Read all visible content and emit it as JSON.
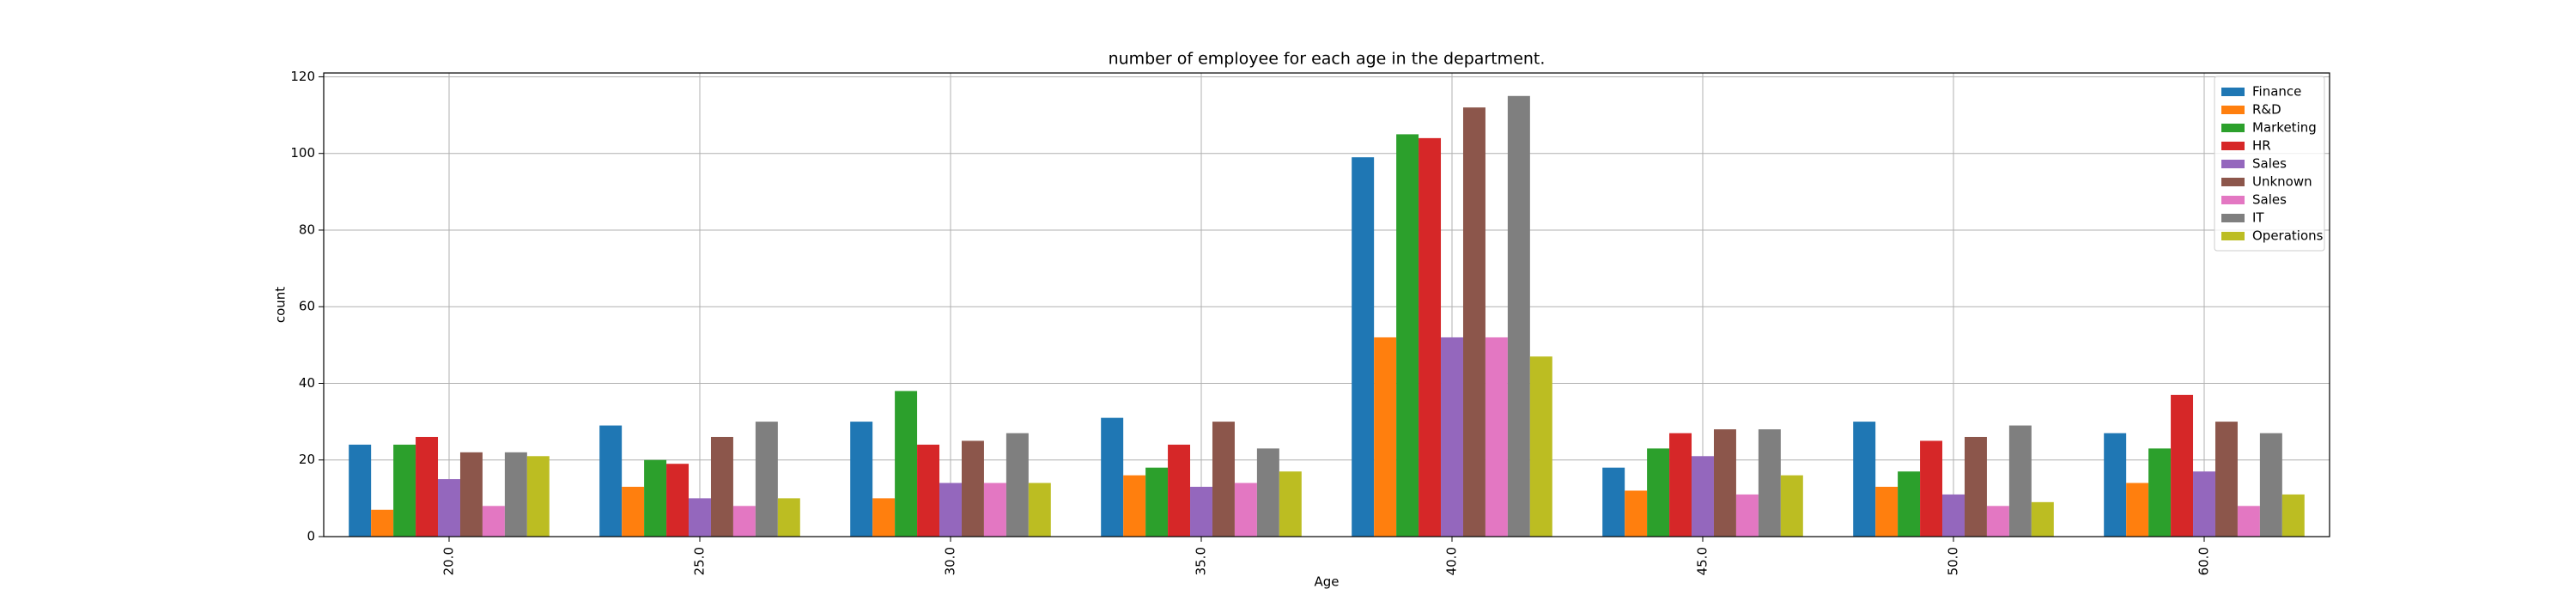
{
  "chart_data": {
    "type": "bar",
    "title": "number of employee for each age in the department.",
    "x_label": "Age",
    "y_label": "count",
    "categories": [
      "20.0",
      "25.0",
      "30.0",
      "35.0",
      "40.0",
      "45.0",
      "50.0",
      "60.0"
    ],
    "series": [
      {
        "name": "Finance",
        "color": "#1f77b4",
        "values": [
          24,
          29,
          30,
          31,
          99,
          18,
          30,
          27
        ]
      },
      {
        "name": "R&D",
        "color": "#ff7f0e",
        "values": [
          7,
          13,
          10,
          16,
          52,
          12,
          13,
          14
        ]
      },
      {
        "name": "Marketing",
        "color": "#2ca02c",
        "values": [
          24,
          20,
          38,
          18,
          105,
          23,
          17,
          23
        ]
      },
      {
        "name": "HR",
        "color": "#d62728",
        "values": [
          26,
          19,
          24,
          24,
          104,
          27,
          25,
          37
        ]
      },
      {
        "name": "Sales",
        "color": "#9467bd",
        "values": [
          15,
          10,
          14,
          13,
          52,
          21,
          11,
          17
        ]
      },
      {
        "name": "Unknown",
        "color": "#8c564b",
        "values": [
          22,
          26,
          25,
          30,
          112,
          28,
          26,
          30
        ]
      },
      {
        "name": "Sales",
        "color": "#e377c2",
        "values": [
          8,
          8,
          14,
          14,
          52,
          11,
          8,
          8
        ]
      },
      {
        "name": "IT",
        "color": "#7f7f7f",
        "values": [
          22,
          30,
          27,
          23,
          115,
          28,
          29,
          27
        ]
      },
      {
        "name": "Operations",
        "color": "#bcbd22",
        "values": [
          21,
          10,
          14,
          17,
          47,
          16,
          9,
          11
        ]
      }
    ],
    "ylim": [
      0,
      121
    ],
    "yticks": [
      0,
      20,
      40,
      60,
      80,
      100,
      120
    ],
    "grid": true,
    "legend": "upper right"
  }
}
